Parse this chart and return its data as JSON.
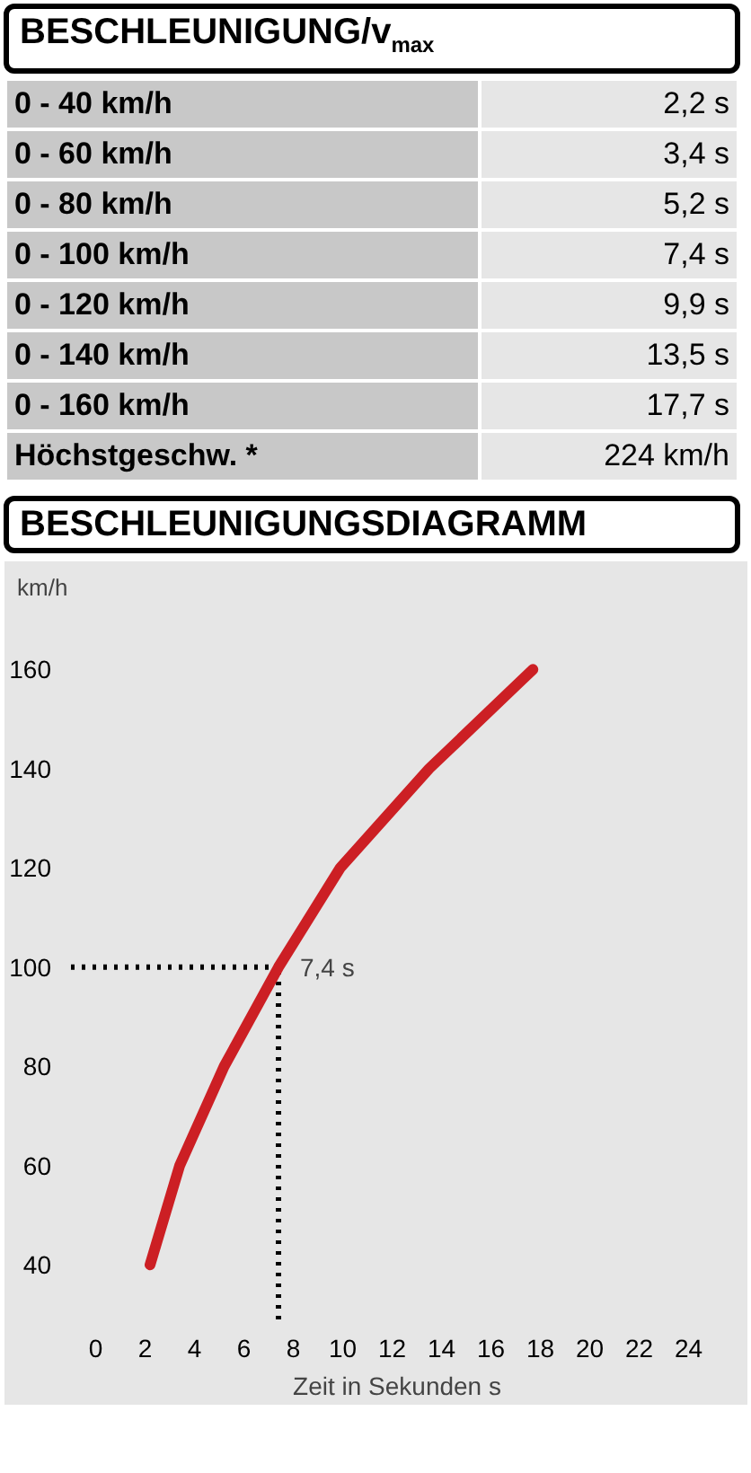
{
  "chart_data": {
    "type": "line",
    "title": "BESCHLEUNIGUNG/v$_{max}$",
    "subtitle": "BESCHLEUNIGUNGSDIAGRAMM",
    "xlabel": "Zeit in Sekunden s",
    "ylabel": "km/h",
    "x": [
      2.2,
      3.4,
      5.2,
      7.4,
      9.9,
      13.5,
      17.7
    ],
    "series": [
      {
        "color": "#cc1f24",
        "values": [
          40,
          60,
          80,
          100,
          120,
          140,
          160
        ]
      }
    ],
    "annotations": [
      "0 - 40 km/h",
      "2,2 s",
      "0 - 60 km/h",
      "3,4 s",
      "0 - 80 km/h",
      "5,2 s",
      "0 - 100 km/h",
      "7,4 s",
      "0 - 120 km/h",
      "9,9 s",
      "0 - 140 km/h",
      "13,5 s",
      "0 - 160 km/h",
      "17,7 s",
      "Höchstgeschw. *",
      "224 km/h"
    ],
    "xlim": [
      -1,
      25.4
    ],
    "ylim": [
      29,
      172
    ],
    "xticks": [
      0,
      2,
      4,
      6,
      8,
      10,
      12,
      14,
      16,
      18,
      20,
      22,
      24
    ],
    "yticks": [
      40,
      60,
      80,
      100,
      120,
      140,
      160
    ],
    "ref_lines": [
      {
        "axis": "y",
        "value": 100,
        "line_style": "dotted",
        "color": "#000000"
      },
      {
        "axis": "x",
        "value": 7.4,
        "label": "7,4 s",
        "line_style": "dotted",
        "color": "#000000"
      }
    ],
    "marker": "none",
    "line_style": "solid"
  }
}
